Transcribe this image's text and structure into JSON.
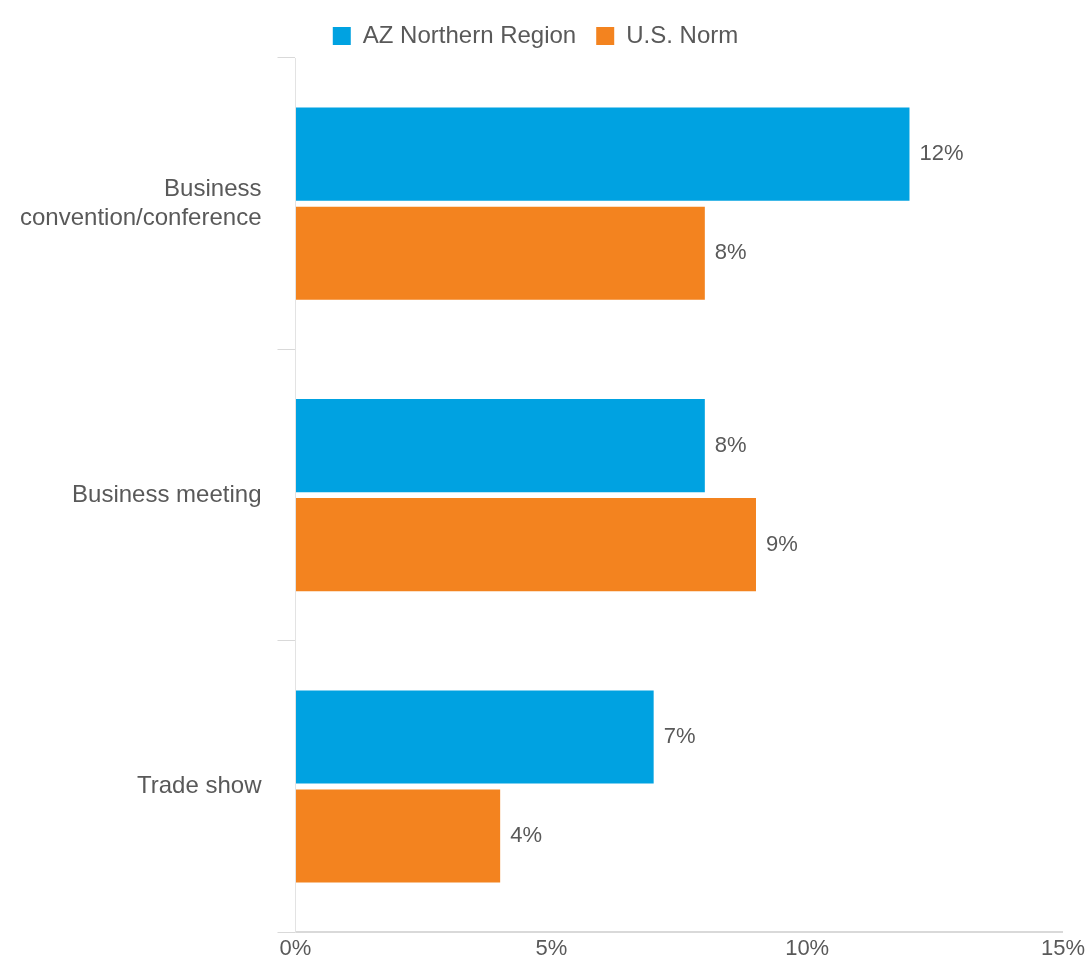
{
  "chart_data": {
    "type": "bar",
    "orientation": "horizontal",
    "categories": [
      "Business convention/conference",
      "Business meeting",
      "Trade show"
    ],
    "series": [
      {
        "name": "AZ Northern Region",
        "color": "#00a2e1",
        "values": [
          12,
          8,
          7
        ],
        "value_labels": [
          "12%",
          "8%",
          "7%"
        ]
      },
      {
        "name": "U.S. Norm",
        "color": "#f3831f",
        "values": [
          8,
          9,
          4
        ],
        "value_labels": [
          "8%",
          "9%",
          "4%"
        ]
      }
    ],
    "xlim": [
      0,
      15
    ],
    "xticks": [
      {
        "value": 0,
        "label": "0%"
      },
      {
        "value": 5,
        "label": "5%"
      },
      {
        "value": 10,
        "label": "10%"
      },
      {
        "value": 15,
        "label": "15%"
      }
    ],
    "grid": false,
    "legend": "top"
  }
}
